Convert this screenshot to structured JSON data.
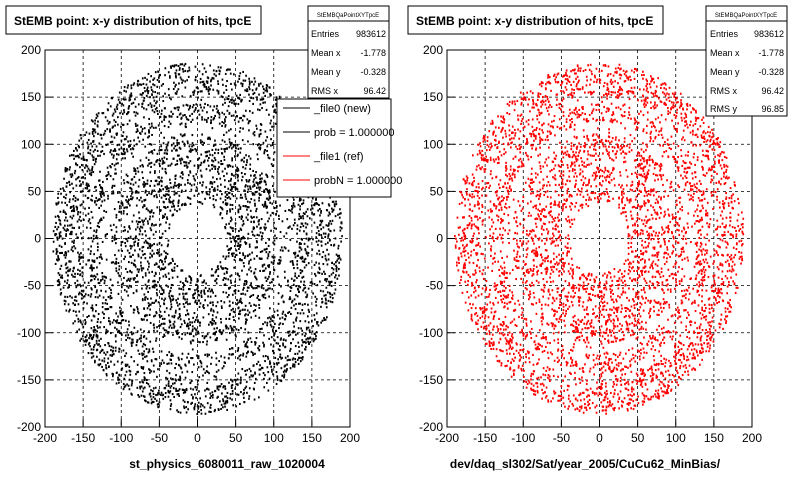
{
  "chart_data": [
    {
      "type": "scatter",
      "title": "StEMB point: x-y distribution of hits, tpcE",
      "xlabel": "st_physics_6080011_raw_1020004",
      "ylabel": "",
      "xlim": [
        -200,
        200
      ],
      "ylim": [
        -200,
        200
      ],
      "x_ticks": [
        "-200",
        "-150",
        "-100",
        "-50",
        "0",
        "50",
        "100",
        "150",
        "200"
      ],
      "y_ticks": [
        "200",
        "150",
        "100",
        "50",
        "0",
        "-50",
        "-100",
        "-150",
        "-200"
      ],
      "grid": true,
      "color": "#000000",
      "distribution": {
        "inner_radius": 38,
        "outer_radius": 190,
        "center": [
          0,
          0
        ]
      },
      "stats": {
        "name": "StEMBQaPointXYTpcE",
        "rows": [
          {
            "label": "Entries",
            "value": "983612"
          },
          {
            "label": "Mean x",
            "value": "-1.778"
          },
          {
            "label": "Mean y",
            "value": "-0.328"
          },
          {
            "label": "RMS x",
            "value": "96.42"
          }
        ]
      },
      "legend": {
        "placement": "top-right",
        "entries": [
          {
            "label": "_file0 (new)",
            "color": "#000000"
          },
          {
            "label": "prob = 1.000000",
            "color": "#000000"
          },
          {
            "label": "_file1 (ref)",
            "color": "#ff0000"
          },
          {
            "label": "probN = 1.000000",
            "color": "#ff0000"
          }
        ]
      }
    },
    {
      "type": "scatter",
      "title": "StEMB point: x-y distribution of hits, tpcE",
      "xlabel": "dev/daq_sl302/Sat/year_2005/CuCu62_MinBias/",
      "ylabel": "",
      "xlim": [
        -200,
        200
      ],
      "ylim": [
        -200,
        200
      ],
      "x_ticks": [
        "-200",
        "-150",
        "-100",
        "-50",
        "0",
        "50",
        "100",
        "150",
        "200"
      ],
      "y_ticks": [
        "200",
        "150",
        "100",
        "50",
        "0",
        "-50",
        "-100",
        "-150",
        "-200"
      ],
      "grid": true,
      "color": "#ff0000",
      "distribution": {
        "inner_radius": 38,
        "outer_radius": 190,
        "center": [
          0,
          0
        ]
      },
      "stats": {
        "name": "StEMBQaPointXYTpcE",
        "rows": [
          {
            "label": "Entries",
            "value": "983612"
          },
          {
            "label": "Mean x",
            "value": "-1.778"
          },
          {
            "label": "Mean y",
            "value": "-0.328"
          },
          {
            "label": "RMS x",
            "value": "96.42"
          },
          {
            "label": "RMS y",
            "value": "96.85"
          }
        ]
      }
    }
  ]
}
